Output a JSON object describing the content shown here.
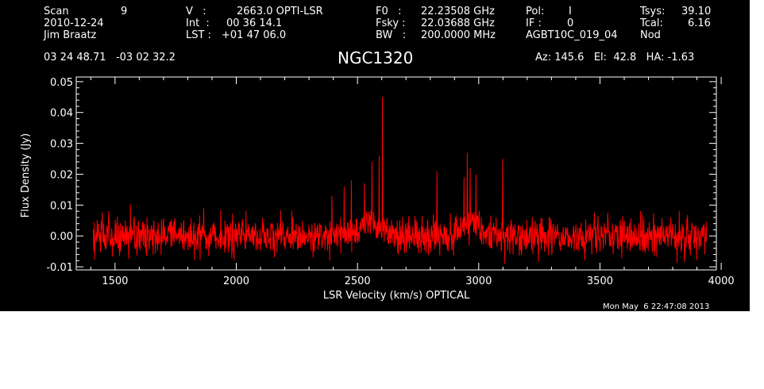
{
  "header": {
    "row1": {
      "scan_label": "Scan",
      "scan_value": "9",
      "v_label": "V   :",
      "v_value": "2663.0 OPTI-LSR",
      "f0_label": "F0   :",
      "f0_value": "22.23508 GHz",
      "pol_label": "Pol:",
      "pol_value": "I",
      "tsys_label": "Tsys:",
      "tsys_value": "39.10"
    },
    "row2": {
      "date": "2010-12-24",
      "int_label": "Int  :",
      "int_value": "00 36 14.1",
      "fsky_label": "Fsky :",
      "fsky_value": "22.03688 GHz",
      "if_label": "IF :",
      "if_value": "0",
      "tcal_label": "Tcal:",
      "tcal_value": "6.16"
    },
    "row3": {
      "observer": "Jim Braatz",
      "lst_label": "LST :",
      "lst_value": "+01 47 06.0",
      "bw_label": "BW   :",
      "bw_value": "200.0000 MHz",
      "project": "AGBT10C_019_04",
      "mode": "Nod"
    },
    "coords": "03 24 48.71   -03 02 32.2",
    "object_name": "NGC1320",
    "pointing": "Az: 145.6   El:  42.8   HA: -1.63"
  },
  "timestamp": "Mon May  6 22:47:08 2013",
  "colors": {
    "background": "#000000",
    "axes": "#ffffff",
    "trace": "#ff0000"
  },
  "chart_data": {
    "type": "line",
    "title": "NGC1320",
    "xlabel": "LSR Velocity (km/s) OPTICAL",
    "ylabel": "Flux Density (Jy)",
    "xlim": [
      1340,
      3980
    ],
    "ylim": [
      -0.011,
      0.0515
    ],
    "xticks": [
      1500,
      2000,
      2500,
      3000,
      3500,
      4000
    ],
    "xtick_labels": [
      "1500",
      "2000",
      "2500",
      "3000",
      "3500",
      "4000"
    ],
    "yticks": [
      -0.01,
      0.0,
      0.01,
      0.02,
      0.03,
      0.04,
      0.05
    ],
    "ytick_labels": [
      "-0.01",
      "0.00",
      "0.01",
      "0.02",
      "0.03",
      "0.04",
      "0.05"
    ],
    "grid": false,
    "series": [
      {
        "x_start": 1410,
        "x_end": 3940,
        "n_points": 1700,
        "noise_rms": 0.003,
        "broad_features": [
          {
            "center": 2545,
            "amplitude": 0.0045,
            "width": 40
          },
          {
            "center": 2960,
            "amplitude": 0.004,
            "width": 40
          }
        ],
        "spikes": [
          {
            "x": 2395,
            "y": 0.013
          },
          {
            "x": 2445,
            "y": 0.016
          },
          {
            "x": 2475,
            "y": 0.018
          },
          {
            "x": 2528,
            "y": 0.017
          },
          {
            "x": 2560,
            "y": 0.024
          },
          {
            "x": 2590,
            "y": 0.026
          },
          {
            "x": 2603,
            "y": 0.045
          },
          {
            "x": 2828,
            "y": 0.021
          },
          {
            "x": 2940,
            "y": 0.019
          },
          {
            "x": 2953,
            "y": 0.027
          },
          {
            "x": 2965,
            "y": 0.022
          },
          {
            "x": 2988,
            "y": 0.02
          },
          {
            "x": 3098,
            "y": 0.025
          },
          {
            "x": 3108,
            "y": -0.009
          }
        ]
      }
    ]
  }
}
